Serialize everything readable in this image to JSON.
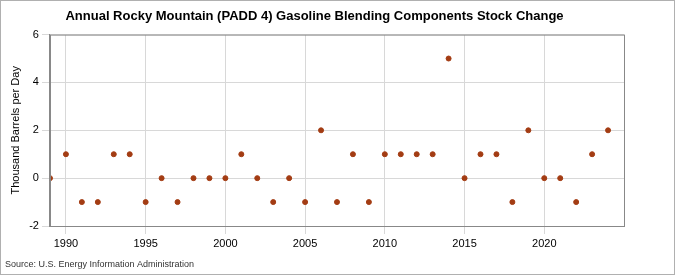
{
  "chart_data": {
    "type": "scatter",
    "title": "Annual Rocky Mountain (PADD 4) Gasoline Blending Components Stock Change",
    "y_label": "Thousand Barrels per Day",
    "source": "Source: U.S. Energy Information Administration",
    "x": [
      1989,
      1990,
      1991,
      1992,
      1993,
      1994,
      1995,
      1996,
      1997,
      1998,
      1999,
      2000,
      2001,
      2002,
      2003,
      2004,
      2005,
      2006,
      2007,
      2008,
      2009,
      2010,
      2011,
      2012,
      2013,
      2014,
      2015,
      2016,
      2017,
      2018,
      2019,
      2020,
      2021,
      2022,
      2023,
      2024
    ],
    "values": [
      0,
      1,
      -1,
      -1,
      1,
      1,
      -1,
      0,
      -1,
      0,
      0,
      0,
      1,
      0,
      -1,
      0,
      -1,
      2,
      -1,
      1,
      -1,
      1,
      1,
      1,
      1,
      5,
      0,
      1,
      1,
      -1,
      2,
      0,
      0,
      -1,
      1,
      2
    ],
    "color": "#a33c13",
    "marker": "circle",
    "xlim": [
      1989,
      2025
    ],
    "xticks": [
      1990,
      1995,
      2000,
      2005,
      2010,
      2015,
      2020
    ],
    "ylim": [
      -2,
      6
    ],
    "yticks": [
      -2,
      0,
      2,
      4,
      6
    ],
    "grid": true
  }
}
